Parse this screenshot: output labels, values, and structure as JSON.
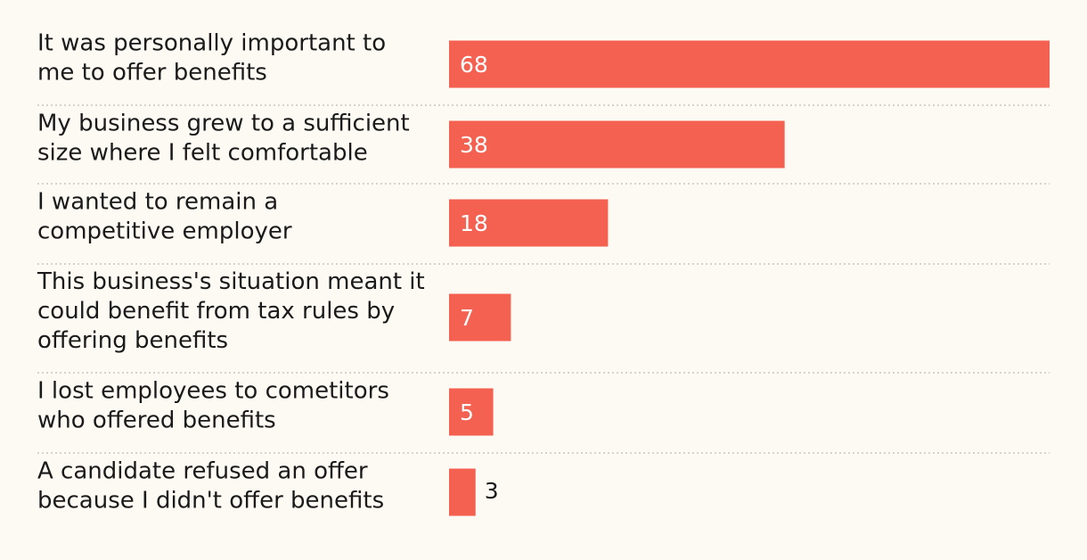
{
  "chart_data": {
    "type": "bar",
    "orientation": "horizontal",
    "title": "",
    "xlabel": "",
    "ylabel": "",
    "categories": [
      [
        "It was personally important to",
        "me to offer benefits"
      ],
      [
        "My business grew to a sufficient",
        "size where I felt comfortable"
      ],
      [
        "I wanted to remain a",
        "competitive employer"
      ],
      [
        "This business's situation meant it",
        "could benefit from tax rules by",
        "offering benefits"
      ],
      [
        "I lost employees to cometitors",
        "who offered benefits"
      ],
      [
        "A candidate refused an offer",
        "because I didn't offer benefits"
      ]
    ],
    "values": [
      68,
      38,
      18,
      7,
      5,
      3
    ],
    "xlim": [
      0,
      68
    ],
    "grid": false,
    "legend": "none",
    "bar_color": "#f46150",
    "label_inside_color": "#ffffff",
    "label_outside_color": "#1a1a1a",
    "separator_color": "#c9c5bf"
  }
}
